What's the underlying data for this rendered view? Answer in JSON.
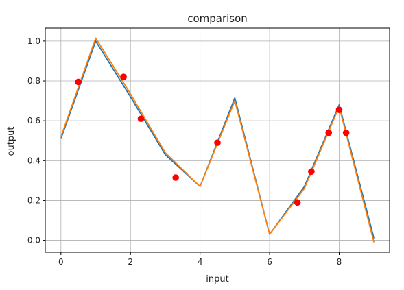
{
  "chart_data": {
    "type": "line",
    "title": "comparison",
    "xlabel": "input",
    "ylabel": "output",
    "xlim": [
      -0.45,
      9.45
    ],
    "ylim": [
      -0.06,
      1.065
    ],
    "xticks": [
      0,
      2,
      4,
      6,
      8
    ],
    "yticks": [
      0.0,
      0.2,
      0.4,
      0.6,
      0.8,
      1.0
    ],
    "xtick_labels": [
      "0",
      "2",
      "4",
      "6",
      "8"
    ],
    "ytick_labels": [
      "0.0",
      "0.2",
      "0.4",
      "0.6",
      "0.8",
      "1.0"
    ],
    "grid": true,
    "series": [
      {
        "kind": "line",
        "color": "#1f77b4",
        "x": [
          0,
          1,
          2,
          3,
          4,
          5,
          6,
          7,
          8,
          9
        ],
        "y": [
          0.51,
          1.0,
          0.72,
          0.43,
          0.27,
          0.715,
          0.03,
          0.27,
          0.68,
          0.01
        ]
      },
      {
        "kind": "line",
        "color": "#ff7f0e",
        "x": [
          0,
          1,
          2,
          3,
          4,
          5,
          6,
          7,
          8,
          9
        ],
        "y": [
          0.52,
          1.015,
          0.735,
          0.44,
          0.27,
          0.7,
          0.03,
          0.26,
          0.67,
          -0.01
        ]
      },
      {
        "kind": "scatter",
        "color": "#ff0000",
        "x": [
          0.5,
          1.8,
          2.3,
          3.3,
          4.5,
          6.8,
          7.2,
          7.7,
          8.0,
          8.2
        ],
        "y": [
          0.795,
          0.82,
          0.61,
          0.315,
          0.49,
          0.19,
          0.345,
          0.54,
          0.655,
          0.54
        ]
      }
    ]
  }
}
